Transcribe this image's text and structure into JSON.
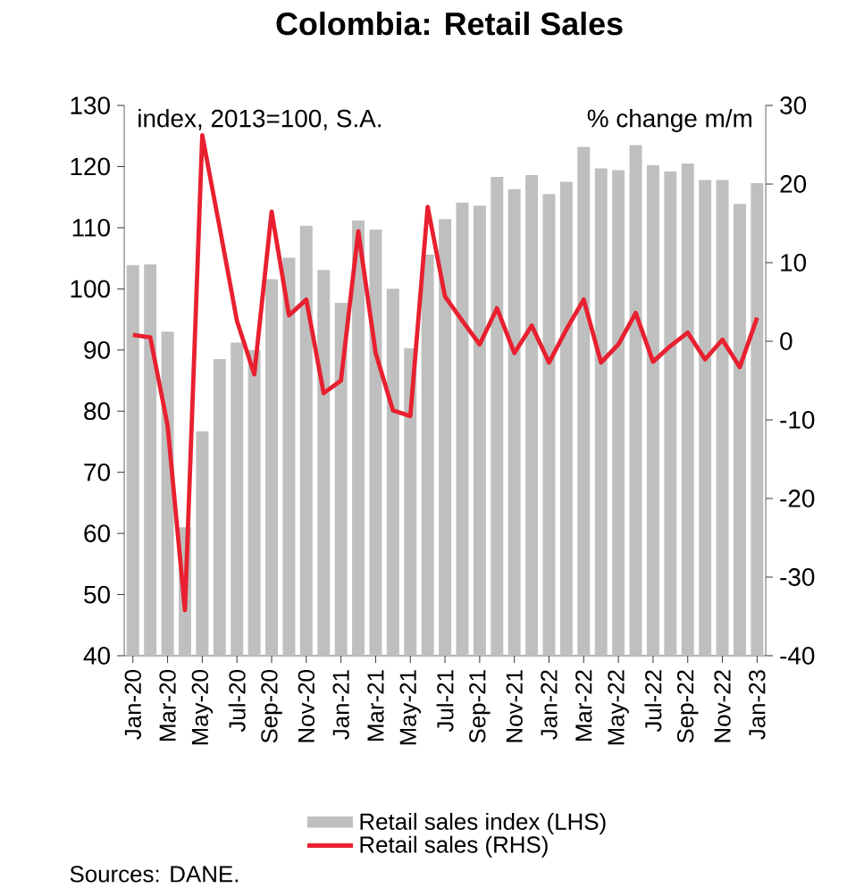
{
  "chart_data": {
    "type": "bar",
    "title": "Colombia: Retail Sales",
    "ylabel": "index, 2013=100, S.A.",
    "y2label": "% change m/m",
    "categories": [
      "Jan-20",
      null,
      "Mar-20",
      null,
      "May-20",
      null,
      "Jul-20",
      null,
      "Sep-20",
      null,
      "Nov-20",
      null,
      "Jan-21",
      null,
      "Mar-21",
      null,
      "May-21",
      null,
      "Jul-21",
      null,
      "Sep-21",
      null,
      "Nov-21",
      null,
      "Jan-22",
      null,
      "Mar-22",
      null,
      "May-22",
      null,
      "Jul-22",
      null,
      "Sep-22",
      null,
      "Nov-22",
      null,
      "Jan-23"
    ],
    "series": [
      {
        "name": "Retail sales index (LHS)",
        "color": "#bfbfbf",
        "values": [
          103.9,
          104,
          93,
          61,
          76.7,
          88.5,
          91.2,
          90,
          101.6,
          105.1,
          110.3,
          103.1,
          97.7,
          111.2,
          109.7,
          100,
          90.3,
          105.6,
          111.4,
          114.1,
          113.6,
          118.3,
          116.3,
          118.6,
          115.5,
          117.5,
          123.2,
          119.7,
          119.4,
          123.5,
          120.2,
          119.2,
          120.5,
          117.8,
          117.8,
          113.9,
          117.3
        ]
      },
      {
        "name": "Retail sales (RHS)",
        "type": "line",
        "axis": "y2",
        "color": "#e8202f",
        "values": [
          0.8,
          0.5,
          -10.7,
          -34.2,
          26.2,
          14.5,
          2.6,
          -4.2,
          16.5,
          3.3,
          5.3,
          -6.6,
          -5,
          14,
          -1.5,
          -8.8,
          -9.5,
          17.1,
          5.7,
          2.6,
          -0.4,
          4.2,
          -1.5,
          2,
          -2.7,
          1.5,
          5.3,
          -2.7,
          -0.4,
          3.6,
          -2.6,
          -0.6,
          1.1,
          -2.3,
          0.2,
          -3.3,
          3
        ]
      }
    ],
    "ylim": [
      40,
      130
    ],
    "yticks": [
      40,
      50,
      60,
      70,
      80,
      90,
      100,
      110,
      120,
      130
    ],
    "y2lim": [
      -40,
      30
    ],
    "y2ticks": [
      -40,
      -30,
      -20,
      -10,
      0,
      10,
      20,
      30
    ],
    "legend": "bottom",
    "annotations": [
      "Sources: DANE."
    ]
  }
}
